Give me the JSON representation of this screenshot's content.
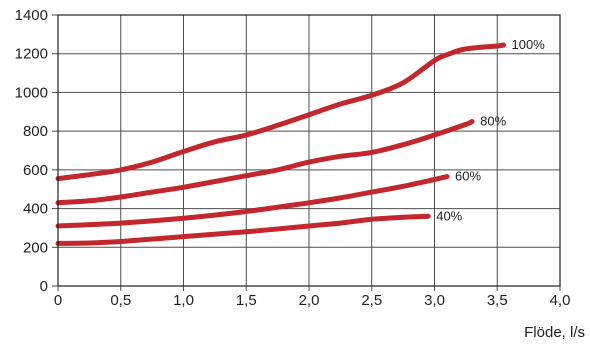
{
  "chart_data": {
    "type": "line",
    "title": "",
    "xlabel": "Flöde, l/s",
    "ylabel": "",
    "xlim": [
      0,
      4.0
    ],
    "ylim": [
      0,
      1400
    ],
    "x_ticks": [
      "0",
      "0,5",
      "1,0",
      "1,5",
      "2,0",
      "2,5",
      "3,0",
      "3,5",
      "4,0"
    ],
    "y_ticks": [
      "0",
      "200",
      "400",
      "600",
      "800",
      "1000",
      "1200",
      "1400"
    ],
    "grid": true,
    "legend": "none",
    "line_color": "#c1272d",
    "series": [
      {
        "name": "100%",
        "x": [
          0,
          0.25,
          0.5,
          0.75,
          1.0,
          1.25,
          1.5,
          1.75,
          2.0,
          2.25,
          2.5,
          2.75,
          3.0,
          3.1,
          3.25,
          3.5,
          3.55
        ],
        "y": [
          555,
          575,
          600,
          640,
          695,
          745,
          780,
          830,
          885,
          940,
          985,
          1050,
          1165,
          1195,
          1225,
          1240,
          1245
        ]
      },
      {
        "name": "80%",
        "x": [
          0,
          0.25,
          0.5,
          0.75,
          1.0,
          1.25,
          1.5,
          1.75,
          2.0,
          2.25,
          2.5,
          2.75,
          3.0,
          3.25,
          3.3
        ],
        "y": [
          430,
          440,
          460,
          485,
          510,
          540,
          570,
          600,
          640,
          670,
          690,
          730,
          780,
          835,
          850
        ]
      },
      {
        "name": "60%",
        "x": [
          0,
          0.5,
          1.0,
          1.5,
          2.0,
          2.25,
          2.5,
          2.75,
          3.0,
          3.1
        ],
        "y": [
          310,
          325,
          350,
          385,
          430,
          455,
          485,
          515,
          550,
          565
        ]
      },
      {
        "name": "40%",
        "x": [
          0,
          0.25,
          0.5,
          1.0,
          1.5,
          2.0,
          2.25,
          2.5,
          2.75,
          2.95
        ],
        "y": [
          220,
          222,
          230,
          255,
          280,
          310,
          325,
          345,
          355,
          360
        ]
      }
    ]
  }
}
